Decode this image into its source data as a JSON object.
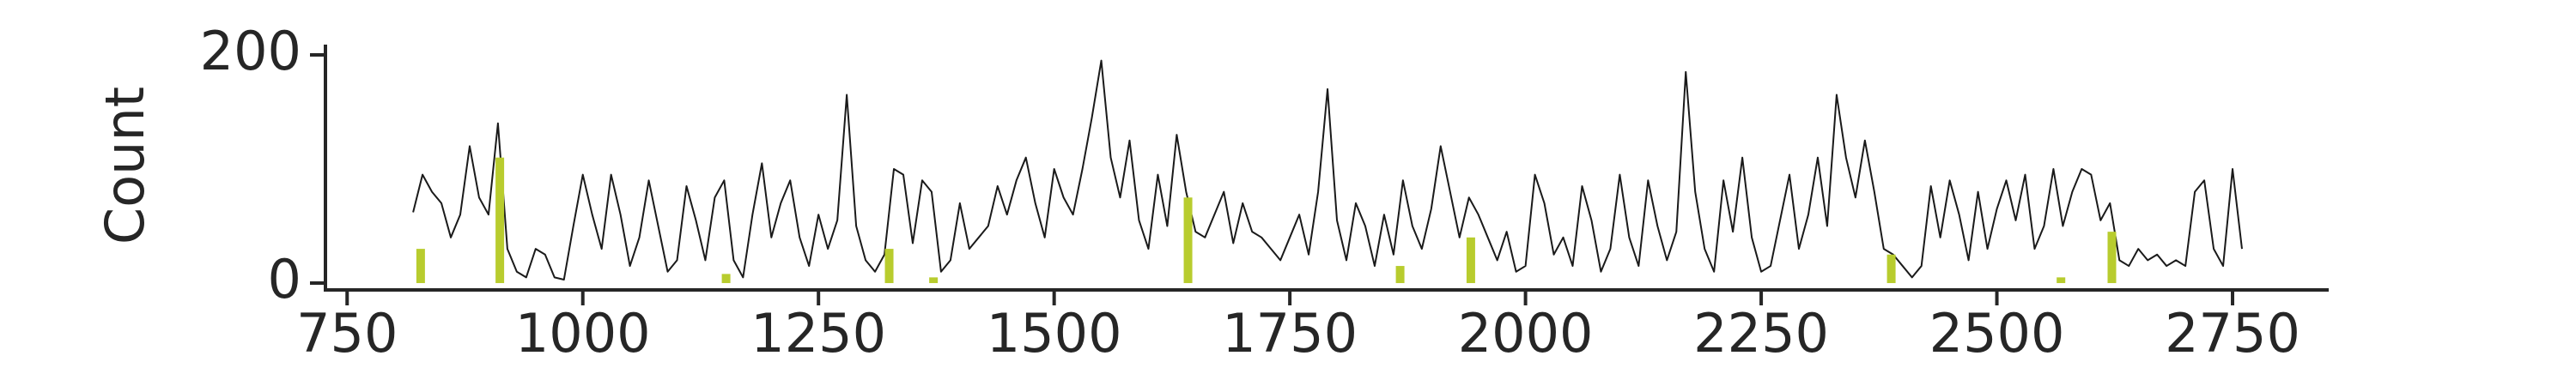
{
  "chart_data": {
    "type": "line",
    "y_label": "Count",
    "xlim": [
      727,
      2852
    ],
    "ylim": [
      -6,
      209
    ],
    "xticks": [
      750,
      1000,
      1250,
      1500,
      1750,
      2000,
      2250,
      2500,
      2750
    ],
    "yticks": [
      0,
      200
    ],
    "grid": false,
    "series": [
      {
        "style": "line",
        "color": "#1a1a1a",
        "x": [
          820,
          830,
          840,
          850,
          860,
          870,
          880,
          890,
          900,
          910,
          920,
          930,
          940,
          950,
          960,
          970,
          980,
          990,
          1000,
          1010,
          1020,
          1030,
          1040,
          1050,
          1060,
          1070,
          1080,
          1090,
          1100,
          1110,
          1120,
          1130,
          1140,
          1150,
          1160,
          1170,
          1180,
          1190,
          1200,
          1210,
          1220,
          1230,
          1240,
          1250,
          1260,
          1270,
          1280,
          1290,
          1300,
          1310,
          1320,
          1330,
          1340,
          1350,
          1360,
          1370,
          1380,
          1390,
          1400,
          1410,
          1420,
          1430,
          1440,
          1450,
          1460,
          1470,
          1480,
          1490,
          1500,
          1510,
          1520,
          1530,
          1540,
          1550,
          1560,
          1570,
          1580,
          1590,
          1600,
          1610,
          1620,
          1630,
          1640,
          1650,
          1660,
          1670,
          1680,
          1690,
          1700,
          1710,
          1720,
          1730,
          1740,
          1750,
          1760,
          1770,
          1780,
          1790,
          1800,
          1810,
          1820,
          1830,
          1840,
          1850,
          1860,
          1870,
          1880,
          1890,
          1900,
          1910,
          1920,
          1930,
          1940,
          1950,
          1960,
          1970,
          1980,
          1990,
          2000,
          2010,
          2020,
          2030,
          2040,
          2050,
          2060,
          2070,
          2080,
          2090,
          2100,
          2110,
          2120,
          2130,
          2140,
          2150,
          2160,
          2170,
          2180,
          2190,
          2200,
          2210,
          2220,
          2230,
          2240,
          2250,
          2260,
          2270,
          2280,
          2290,
          2300,
          2310,
          2320,
          2330,
          2340,
          2350,
          2360,
          2370,
          2380,
          2390,
          2400,
          2410,
          2420,
          2430,
          2440,
          2450,
          2460,
          2470,
          2480,
          2490,
          2500,
          2510,
          2520,
          2530,
          2540,
          2550,
          2560,
          2570,
          2580,
          2590,
          2600,
          2610,
          2620,
          2630,
          2640,
          2650,
          2660,
          2670,
          2680,
          2690,
          2700,
          2710,
          2720,
          2730,
          2740,
          2750,
          2760
        ],
        "values": [
          62,
          95,
          80,
          70,
          40,
          60,
          120,
          75,
          60,
          140,
          30,
          10,
          5,
          30,
          25,
          5,
          3,
          50,
          95,
          60,
          30,
          95,
          60,
          15,
          40,
          90,
          50,
          10,
          20,
          85,
          55,
          20,
          75,
          90,
          20,
          5,
          60,
          105,
          40,
          70,
          90,
          40,
          15,
          60,
          30,
          55,
          165,
          50,
          20,
          10,
          25,
          100,
          95,
          35,
          90,
          80,
          10,
          20,
          70,
          30,
          40,
          50,
          85,
          60,
          90,
          110,
          70,
          40,
          100,
          75,
          60,
          100,
          145,
          195,
          110,
          75,
          125,
          55,
          30,
          95,
          50,
          130,
          80,
          45,
          40,
          60,
          80,
          35,
          70,
          45,
          40,
          30,
          20,
          40,
          60,
          25,
          80,
          170,
          55,
          20,
          70,
          50,
          15,
          60,
          25,
          90,
          50,
          30,
          65,
          120,
          80,
          40,
          75,
          60,
          40,
          20,
          45,
          10,
          15,
          95,
          70,
          25,
          40,
          15,
          85,
          55,
          10,
          30,
          95,
          40,
          15,
          90,
          50,
          20,
          45,
          185,
          80,
          30,
          10,
          90,
          45,
          110,
          40,
          10,
          15,
          55,
          95,
          30,
          60,
          110,
          50,
          165,
          110,
          75,
          125,
          80,
          30,
          25,
          15,
          5,
          15,
          85,
          40,
          90,
          60,
          20,
          80,
          30,
          65,
          90,
          55,
          95,
          30,
          50,
          100,
          50,
          80,
          100,
          95,
          55,
          70,
          20,
          15,
          30,
          20,
          25,
          15,
          20,
          15,
          80,
          90,
          30,
          15,
          100,
          30
        ]
      },
      {
        "style": "bar",
        "color": "#b8cc2e",
        "x": [
          828,
          912,
          1152,
          1325,
          1372,
          1642,
          1867,
          1942,
          2388,
          2568,
          2622
        ],
        "values": [
          30,
          110,
          8,
          30,
          5,
          75,
          15,
          40,
          25,
          5,
          45
        ]
      }
    ]
  }
}
